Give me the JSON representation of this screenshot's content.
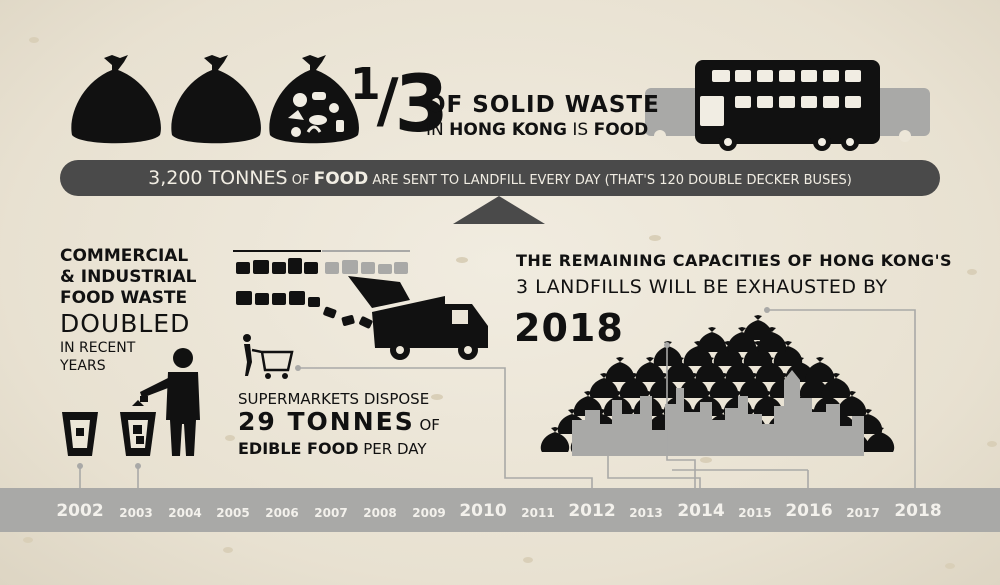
{
  "headline": {
    "fraction_numerator": "1",
    "fraction_denominator": "3",
    "line1": "OF SOLID WASTE",
    "line2_pre": "IN ",
    "line2_bold": "HONG KONG",
    "line2_mid": " IS ",
    "line2_bold2": "FOOD"
  },
  "banner": {
    "amount": "3,200 TONNES",
    "of": " OF ",
    "food": "FOOD",
    "rest": " ARE SENT TO LANDFILL EVERY DAY ",
    "paren": "(THAT'S 120 DOUBLE DECKER BUSES)"
  },
  "commercial": {
    "line1": "COMMERCIAL",
    "line2": "& INDUSTRIAL",
    "line3": "FOOD WASTE",
    "doubled": "DOUBLED",
    "line5": "IN RECENT",
    "line6": "YEARS"
  },
  "supermarket": {
    "line1": "SUPERMARKETS DISPOSE",
    "amount": "29 TONNES",
    "of": " OF",
    "edible": "EDIBLE FOOD",
    "per_day": " PER DAY"
  },
  "landfill": {
    "line1": "THE REMAINING CAPACITIES OF HONG KONG'S",
    "line2": "3 LANDFILLS WILL BE EXHAUSTED BY",
    "year": "2018"
  },
  "timeline": {
    "years": [
      {
        "label": "2002",
        "size": "big"
      },
      {
        "label": "2003",
        "size": "small"
      },
      {
        "label": "2004",
        "size": "small"
      },
      {
        "label": "2005",
        "size": "small"
      },
      {
        "label": "2006",
        "size": "small"
      },
      {
        "label": "2007",
        "size": "small"
      },
      {
        "label": "2008",
        "size": "small"
      },
      {
        "label": "2009",
        "size": "small"
      },
      {
        "label": "2010",
        "size": "big"
      },
      {
        "label": "2011",
        "size": "small"
      },
      {
        "label": "2012",
        "size": "big"
      },
      {
        "label": "2013",
        "size": "small"
      },
      {
        "label": "2014",
        "size": "big"
      },
      {
        "label": "2015",
        "size": "small"
      },
      {
        "label": "2016",
        "size": "big"
      },
      {
        "label": "2017",
        "size": "small"
      },
      {
        "label": "2018",
        "size": "big"
      }
    ]
  },
  "colors": {
    "ink": "#111111",
    "banner": "#4a4a4a",
    "grey": "#a9a9a7",
    "paper": "#ece6d8"
  },
  "icons": [
    "garbage-bag-icon",
    "food-bag-icon",
    "double-decker-bus-icon",
    "garbage-truck-icon",
    "shopping-cart-icon",
    "trash-bin-icon",
    "person-icon",
    "city-skyline-icon"
  ]
}
